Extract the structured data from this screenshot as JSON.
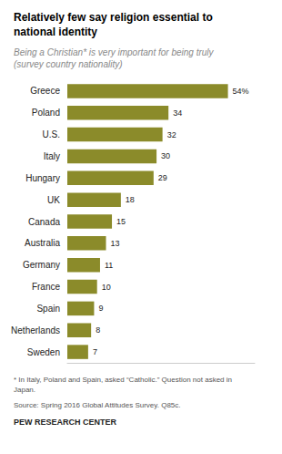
{
  "chart_data": {
    "type": "bar",
    "orientation": "horizontal",
    "title": "Relatively few say religion essential to\nnational identity",
    "subtitle": "Being a Christian* is very important for being truly\n(survey country nationality)",
    "categories": [
      "Greece",
      "Poland",
      "U.S.",
      "Italy",
      "Hungary",
      "UK",
      "Canada",
      "Australia",
      "Germany",
      "France",
      "Spain",
      "Netherlands",
      "Sweden"
    ],
    "values": [
      54,
      34,
      32,
      30,
      29,
      18,
      15,
      13,
      11,
      10,
      9,
      8,
      7
    ],
    "value_labels": [
      "54%",
      "34",
      "32",
      "30",
      "29",
      "18",
      "15",
      "13",
      "11",
      "10",
      "9",
      "8",
      "7"
    ],
    "color": "#8B8B2A",
    "xlim": [
      0,
      63
    ],
    "data_labels": true,
    "tick_labels": "y",
    "grid": false,
    "annotations": [
      "* In Italy, Poland and Spain, asked “Catholic.” Question not asked in\nJapan.",
      "Source: Spring 2016 Global Attitudes Survey. Q85c.",
      "PEW RESEARCH CENTER"
    ]
  }
}
